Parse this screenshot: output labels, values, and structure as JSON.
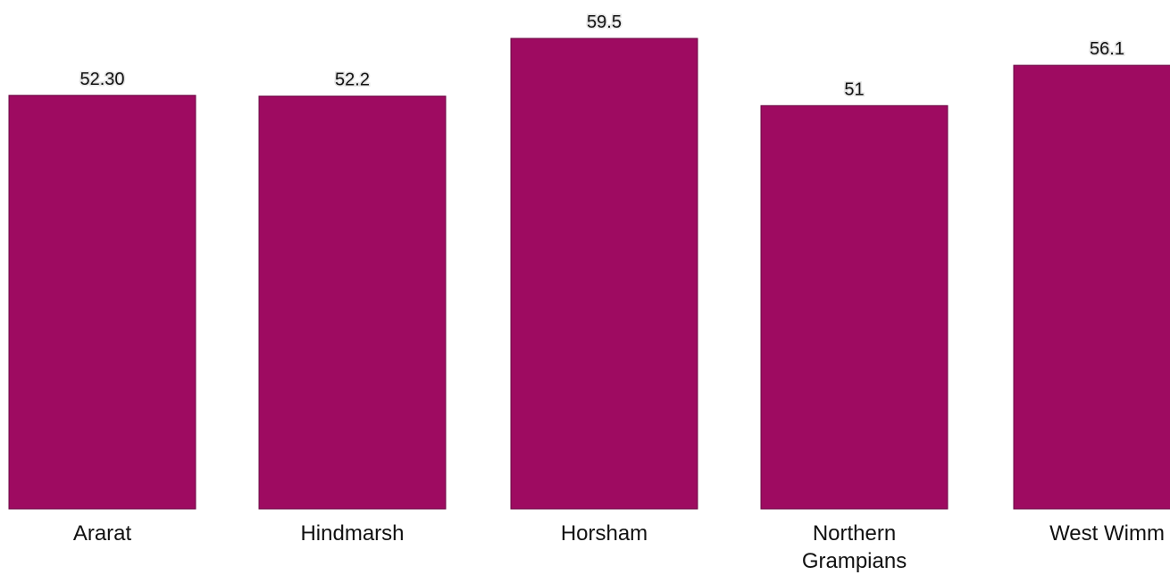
{
  "chart_data": {
    "type": "bar",
    "categories": [
      "Ararat",
      "Hindmarsh",
      "Horsham",
      "Northern Grampians",
      "West Wimm"
    ],
    "values": [
      52.3,
      52.2,
      59.5,
      51,
      56.1
    ],
    "data_labels": [
      "52.30",
      "52.2",
      "59.5",
      "51",
      "56.1"
    ],
    "category_lines": [
      [
        "Ararat"
      ],
      [
        "Hindmarsh"
      ],
      [
        "Horsham"
      ],
      [
        "Northern",
        "Grampians"
      ],
      [
        "West Wimm"
      ]
    ],
    "ylim": [
      0,
      59.5
    ],
    "grid": false,
    "legend": "none",
    "title": "",
    "xlabel": "",
    "ylabel": "",
    "colors": {
      "bar_fill": "#9e0b61",
      "bar_stroke": "#6b0a44",
      "label_halo": "#e4e4e4",
      "text": "#111111"
    }
  }
}
